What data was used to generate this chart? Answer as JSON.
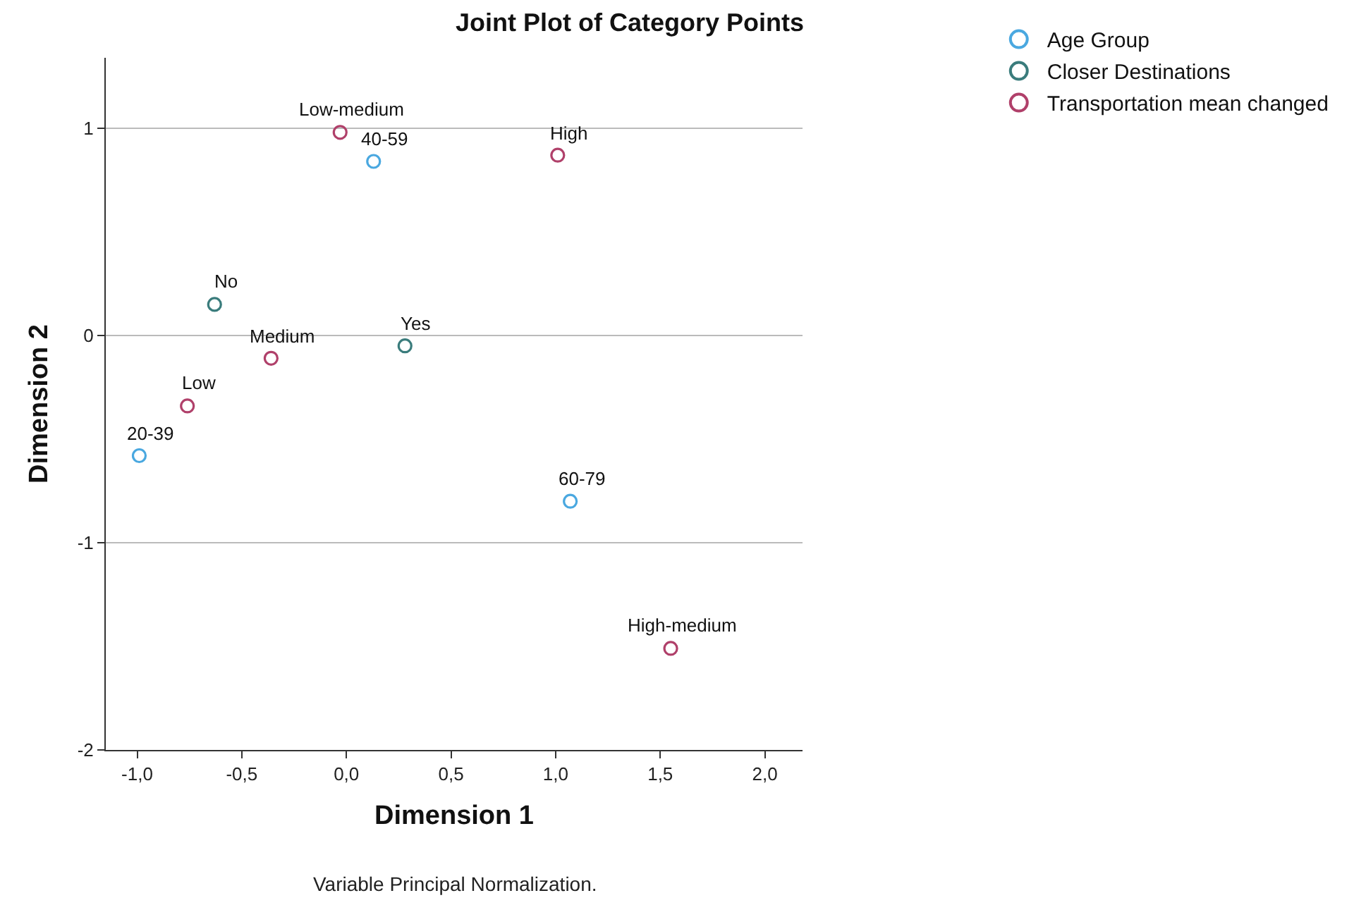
{
  "chart_data": {
    "type": "scatter",
    "title": "Joint Plot of Category Points",
    "xlabel": "Dimension 1",
    "ylabel": "Dimension 2",
    "series": [
      {
        "name": "Age Group",
        "color": "#4aa8e0",
        "x": [
          0.13,
          -0.99,
          1.07
        ],
        "values": [
          0.84,
          -0.58,
          -0.8
        ]
      },
      {
        "name": "Closer Destinations",
        "color": "#3a7c7c",
        "x": [
          -0.63,
          0.28
        ],
        "values": [
          0.15,
          -0.05
        ]
      },
      {
        "name": "Transportation mean changed",
        "color": "#b0406a",
        "x": [
          -0.03,
          1.01,
          -0.36,
          -0.76,
          1.55
        ],
        "values": [
          0.98,
          0.87,
          -0.11,
          -0.34,
          -1.51
        ]
      }
    ],
    "annotations": [
      {
        "text": "40-59",
        "x": 0.13,
        "y": 0.84
      },
      {
        "text": "20-39",
        "x": -0.99,
        "y": -0.58
      },
      {
        "text": "60-79",
        "x": 1.07,
        "y": -0.8
      },
      {
        "text": "No",
        "x": -0.63,
        "y": 0.15
      },
      {
        "text": "Yes",
        "x": 0.28,
        "y": -0.05
      },
      {
        "text": "Low-medium",
        "x": -0.03,
        "y": 0.98
      },
      {
        "text": "High",
        "x": 1.01,
        "y": 0.87
      },
      {
        "text": "Medium",
        "x": -0.36,
        "y": -0.11
      },
      {
        "text": "Low",
        "x": -0.76,
        "y": -0.34
      },
      {
        "text": "High-medium",
        "x": 1.55,
        "y": -1.51
      },
      "Variable Principal Normalization."
    ],
    "xlim": [
      -1.15,
      2.18
    ],
    "ylim": [
      -2,
      1.34
    ],
    "xticks": [
      {
        "value": -1,
        "label": "-1,0"
      },
      {
        "value": -0.5,
        "label": "-0,5"
      },
      {
        "value": 0,
        "label": "0,0"
      },
      {
        "value": 0.5,
        "label": "0,5"
      },
      {
        "value": 1,
        "label": "1,0"
      },
      {
        "value": 1.5,
        "label": "1,5"
      },
      {
        "value": 2,
        "label": "2,0"
      }
    ],
    "yticks": [
      -2,
      -1,
      0,
      1
    ],
    "grid": "y",
    "legend": "top right",
    "marker": "circle"
  }
}
